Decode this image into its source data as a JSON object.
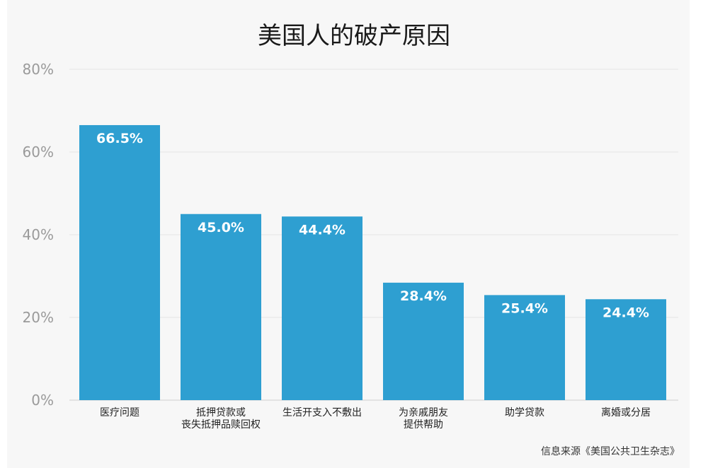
{
  "chart_data": {
    "type": "bar",
    "title": "美国人的破产原因",
    "categories": [
      [
        "医疗问题"
      ],
      [
        "抵押贷款或",
        "丧失抵押品赎回权"
      ],
      [
        "生活开支入不敷出"
      ],
      [
        "为亲戚朋友",
        "提供帮助"
      ],
      [
        "助学贷款"
      ],
      [
        "离婚或分居"
      ]
    ],
    "values": [
      66.5,
      45.0,
      44.4,
      28.4,
      25.4,
      24.4
    ],
    "value_labels": [
      "66.5%",
      "45.0%",
      "44.4%",
      "28.4%",
      "25.4%",
      "24.4%"
    ],
    "yticks": [
      0,
      20,
      40,
      60,
      80
    ],
    "ytick_labels": [
      "0%",
      "20%",
      "40%",
      "60%",
      "80%"
    ],
    "ylim": [
      0,
      80
    ],
    "grid": true,
    "bar_color": "#2e9fd1",
    "source": "信息来源《美国公共卫生杂志》"
  }
}
